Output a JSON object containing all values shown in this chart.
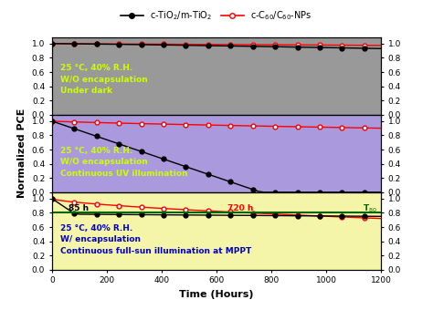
{
  "legend_black_label": "c-TiO$_2$/m-TiO$_2$",
  "legend_red_label": "c-C$_{60}$/C$_{60}$-NPs",
  "xlabel": "Time (Hours)",
  "ylabel": "Normalized PCE",
  "xlim": [
    0,
    1200
  ],
  "panel_bg_colors": [
    "#999999",
    "#aa99dd",
    "#f5f5aa"
  ],
  "panel_texts": [
    [
      "25 °C, 40% R.H.",
      "W/O encapsulation",
      "Under dark"
    ],
    [
      "25 °C, 40% R.H.",
      "W/O encapsulation",
      "Continuous UV illumination"
    ],
    [
      "25 °C, 40% R.H.",
      "W/ encapsulation",
      "Continuous full-sun illumination at MPPT"
    ]
  ],
  "panel_text_colors": [
    [
      "#ccff00",
      "#ccff00",
      "#ccff00"
    ],
    [
      "#ccff00",
      "#ccff00",
      "#ccff00"
    ],
    [
      "#0000cc",
      "#0000cc",
      "#0000cc"
    ]
  ],
  "t80_color": "#006600",
  "yticks": [
    0.0,
    0.2,
    0.4,
    0.6,
    0.8,
    1.0
  ],
  "xticks": [
    0,
    200,
    400,
    600,
    800,
    1000,
    1200
  ]
}
